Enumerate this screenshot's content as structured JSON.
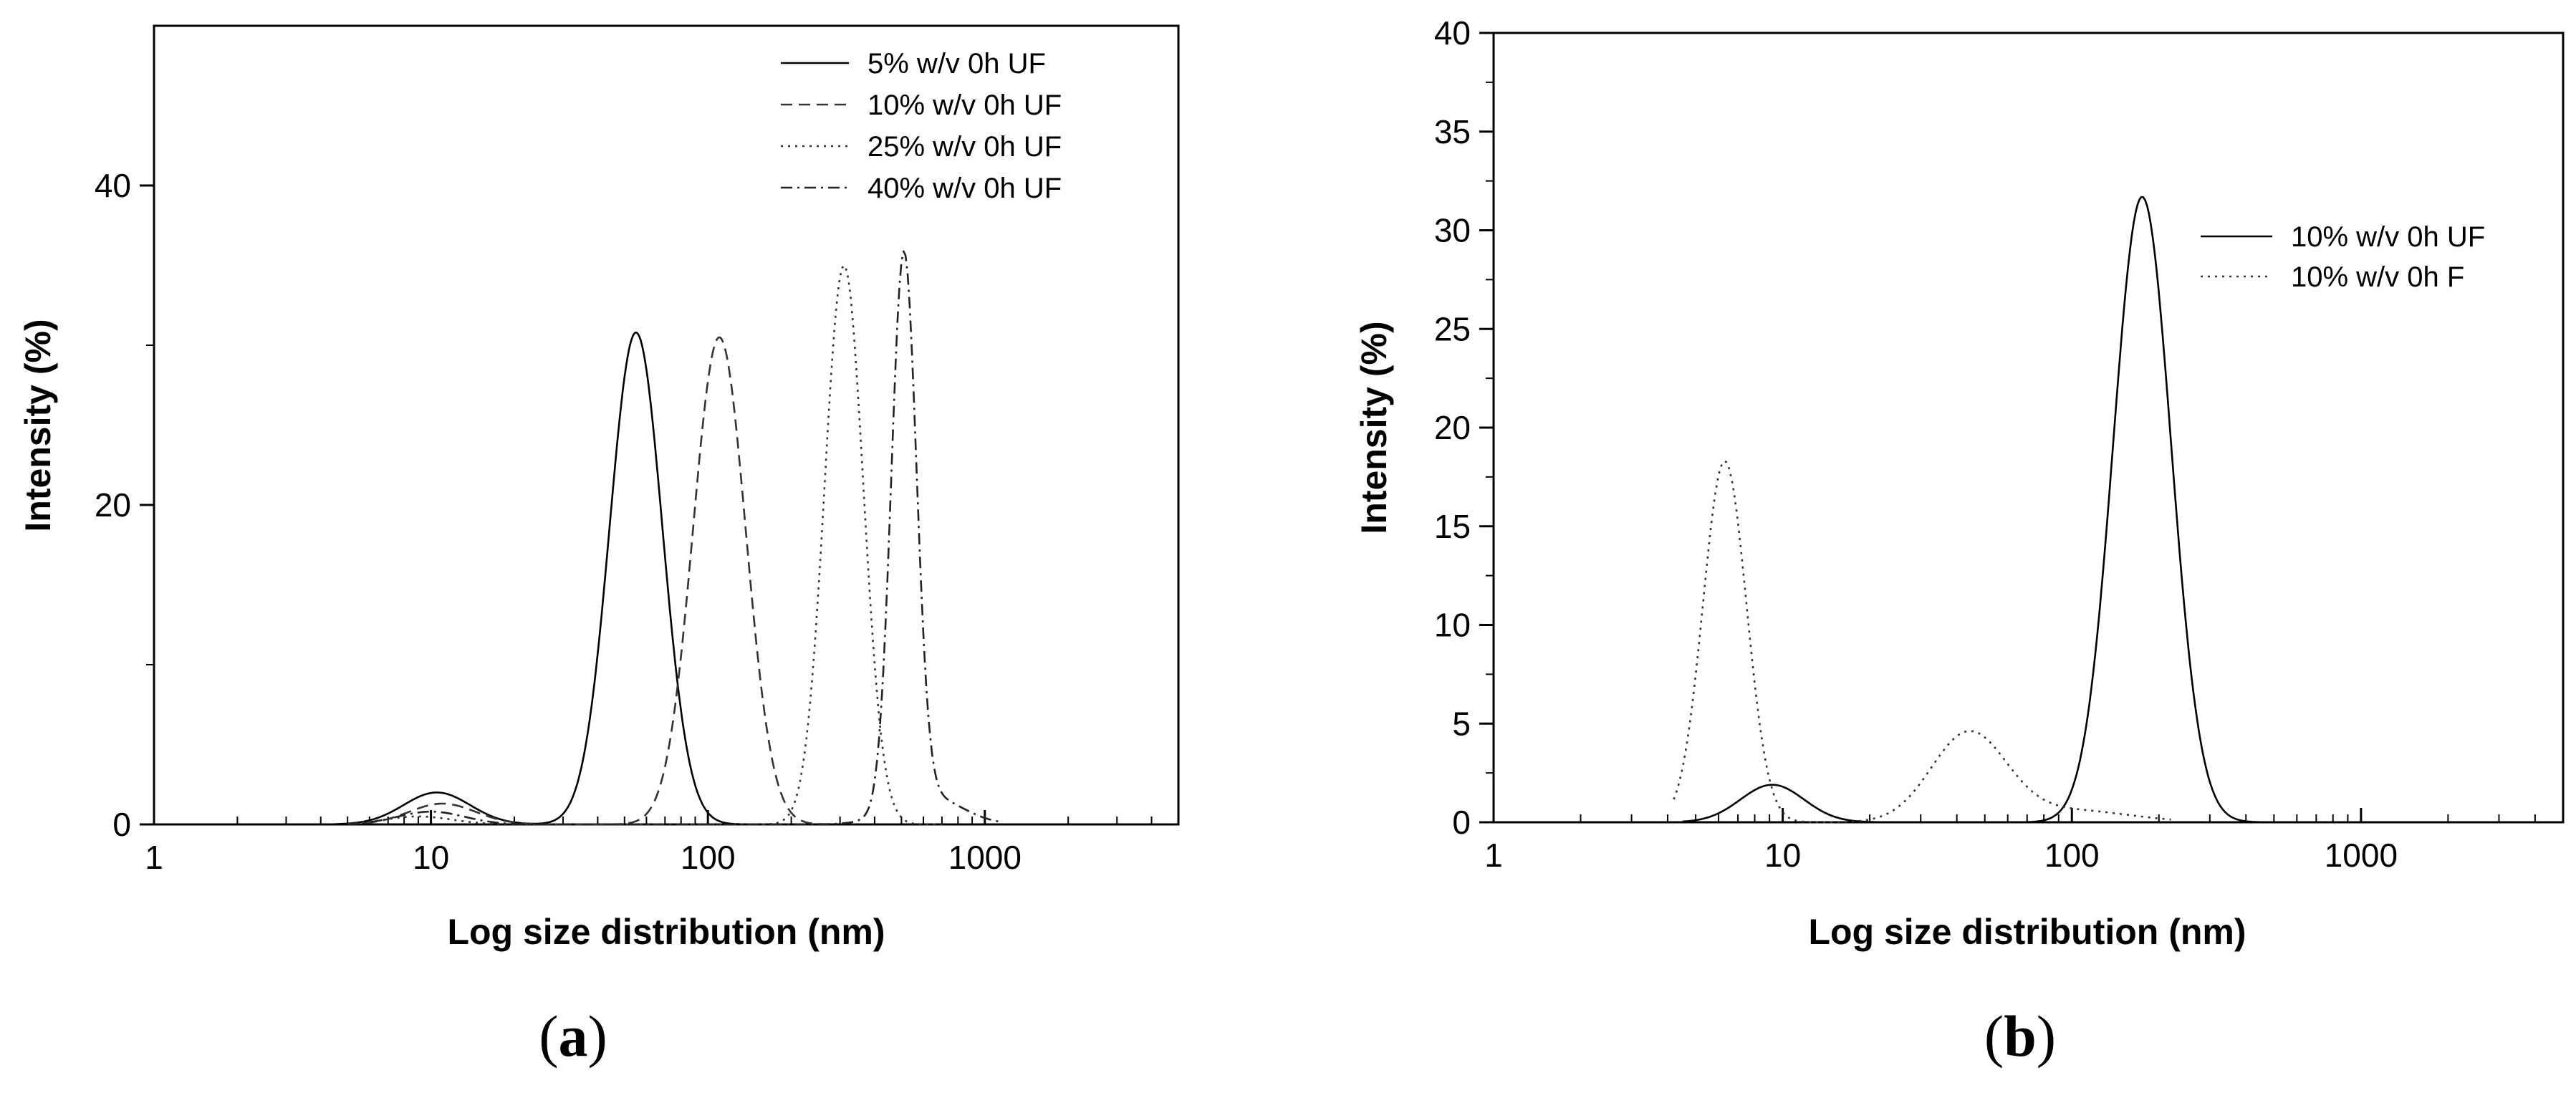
{
  "chart_data": [
    {
      "panel": "(a)",
      "type": "line",
      "xlabel": "Log size distribution (nm)",
      "ylabel": "Intensity (%)",
      "xscale": "log",
      "xlim": [
        1,
        5000
      ],
      "ylim": [
        0,
        50
      ],
      "xticks": [
        1,
        10,
        100,
        1000
      ],
      "xtick_labels": [
        "1",
        "10",
        "100",
        "1000"
      ],
      "yticks": [
        0,
        20,
        40
      ],
      "ytick_labels": [
        "0",
        "20",
        "40"
      ],
      "grid": false,
      "legend_position": "top-right",
      "series": [
        {
          "name": "5% w/v 0h UF",
          "style": "solid",
          "color": "#000000",
          "peaks": [
            {
              "x": 10.5,
              "y": 2.0,
              "w": 0.12
            },
            {
              "x": 55,
              "y": 30.8,
              "w": 0.095
            }
          ],
          "xrange": [
            4.5,
            150
          ]
        },
        {
          "name": "10% w/v 0h UF",
          "style": "dashed",
          "color": "#333333",
          "peaks": [
            {
              "x": 11,
              "y": 1.3,
              "w": 0.12
            },
            {
              "x": 110,
              "y": 30.5,
              "w": 0.095
            }
          ],
          "xrange": [
            5,
            260
          ]
        },
        {
          "name": "25% w/v 0h UF",
          "style": "dotted",
          "color": "#333333",
          "peaks": [
            {
              "x": 9,
              "y": 0.5,
              "w": 0.12
            },
            {
              "x": 310,
              "y": 35.0,
              "w": 0.07
            }
          ],
          "xrange": [
            5,
            700
          ]
        },
        {
          "name": "40% w/v 0h UF",
          "style": "dashdot",
          "color": "#222222",
          "peaks": [
            {
              "x": 10,
              "y": 0.8,
              "w": 0.12
            },
            {
              "x": 510,
              "y": 34.5,
              "w": 0.045
            },
            {
              "x": 620,
              "y": 1.8,
              "w": 0.12
            }
          ],
          "xrange": [
            5,
            1150
          ]
        }
      ],
      "caption": "a"
    },
    {
      "panel": "(b)",
      "type": "line",
      "xlabel": "Log size distribution (nm)",
      "ylabel": "Intensity (%)",
      "xscale": "log",
      "xlim": [
        1,
        5000
      ],
      "ylim": [
        0,
        40
      ],
      "xticks": [
        1,
        10,
        100,
        1000
      ],
      "xtick_labels": [
        "1",
        "10",
        "100",
        "1000"
      ],
      "yticks": [
        0,
        5,
        10,
        15,
        20,
        25,
        30,
        35,
        40
      ],
      "ytick_labels": [
        "0",
        "5",
        "10",
        "15",
        "20",
        "25",
        "30",
        "35",
        "40"
      ],
      "grid": false,
      "legend_position": "right",
      "series": [
        {
          "name": "10% w/v 0h UF",
          "style": "solid",
          "color": "#000000",
          "peaks": [
            {
              "x": 9.2,
              "y": 1.9,
              "w": 0.11
            },
            {
              "x": 175,
              "y": 31.7,
              "w": 0.1
            }
          ],
          "xrange": [
            4.5,
            600
          ]
        },
        {
          "name": "10% w/v 0h F",
          "style": "dotted",
          "color": "#333333",
          "peaks": [
            {
              "x": 6.3,
              "y": 18.3,
              "w": 0.075
            },
            {
              "x": 44,
              "y": 4.5,
              "w": 0.13
            },
            {
              "x": 100,
              "y": 0.6,
              "w": 0.2
            }
          ],
          "xrange": [
            4.2,
            220
          ]
        }
      ],
      "caption": "b"
    }
  ]
}
